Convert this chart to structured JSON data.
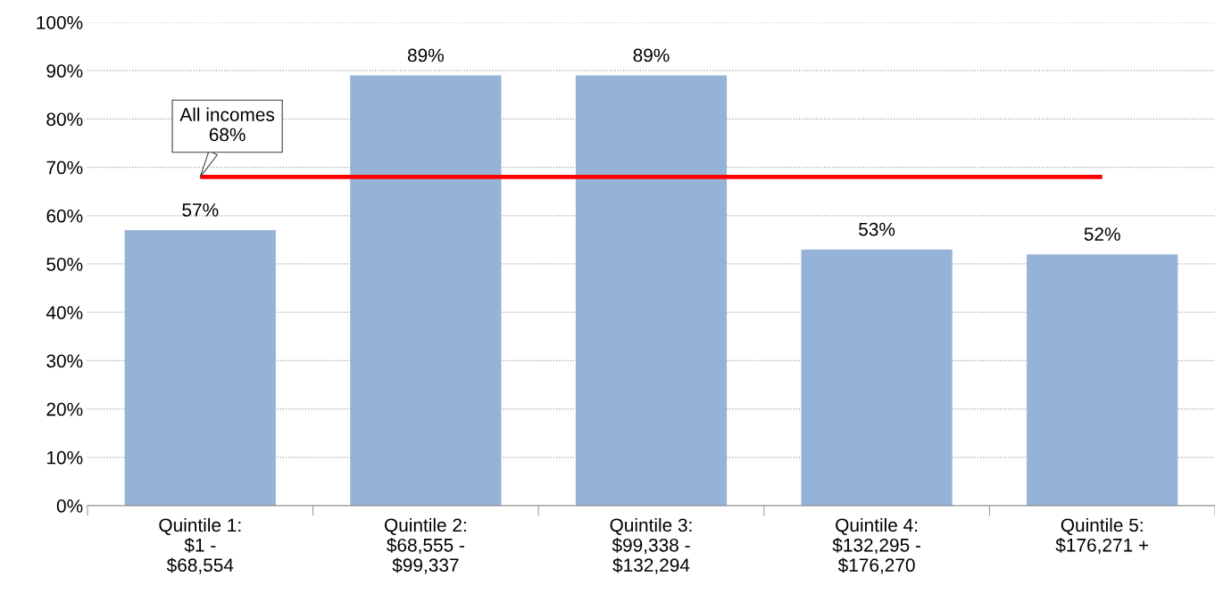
{
  "chart_data": {
    "type": "bar",
    "categories": [
      "Quintile 1:\n$1 -\n$68,554",
      "Quintile 2:\n$68,555 -\n$99,337",
      "Quintile 3:\n$99,338 -\n$132,294",
      "Quintile 4:\n$132,295 -\n$176,270",
      "Quintile 5:\n$176,271 +"
    ],
    "values": [
      57,
      89,
      89,
      53,
      52
    ],
    "value_labels": [
      "57%",
      "89%",
      "89%",
      "53%",
      "52%"
    ],
    "color": "#95b3d7",
    "ylim": [
      0,
      100
    ],
    "yticks": [
      {
        "value": 0,
        "label": "0%"
      },
      {
        "value": 10,
        "label": "10%"
      },
      {
        "value": 20,
        "label": "20%"
      },
      {
        "value": 30,
        "label": "30%"
      },
      {
        "value": 40,
        "label": "40%"
      },
      {
        "value": 50,
        "label": "50%"
      },
      {
        "value": 60,
        "label": "60%"
      },
      {
        "value": 70,
        "label": "70%"
      },
      {
        "value": 80,
        "label": "80%"
      },
      {
        "value": 90,
        "label": "90%"
      },
      {
        "value": 100,
        "label": "100%"
      }
    ],
    "grid": "y",
    "ref_lines": [
      {
        "axis": "y",
        "value": 68,
        "label": "All incomes\n68%",
        "color": "#ff0000"
      }
    ]
  }
}
